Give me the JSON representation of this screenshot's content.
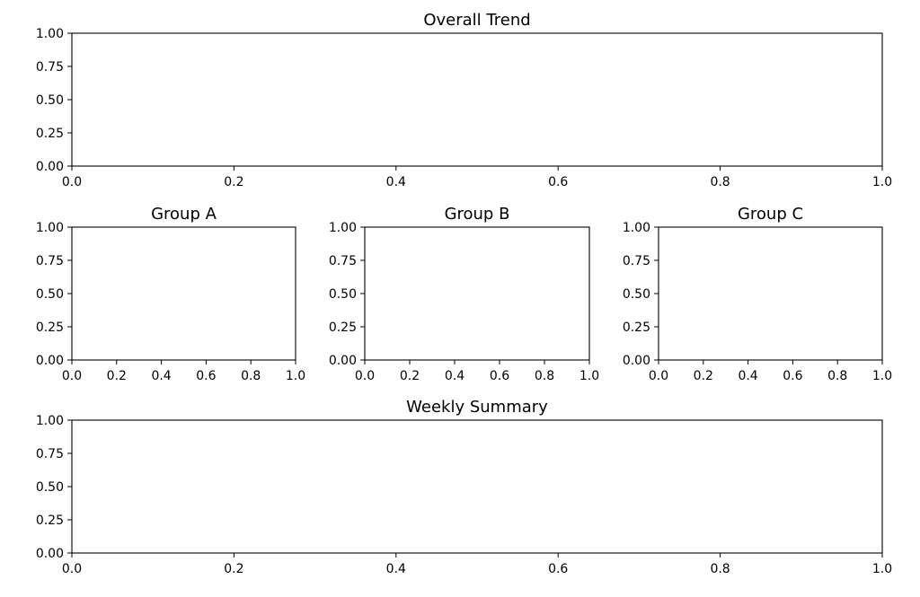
{
  "chart_data": [
    {
      "type": "line",
      "title": "Overall Trend",
      "xlabel": "",
      "ylabel": "",
      "xlim": [
        0,
        1
      ],
      "ylim": [
        0,
        1
      ],
      "xticks": [
        "0.0",
        "0.2",
        "0.4",
        "0.6",
        "0.8",
        "1.0"
      ],
      "yticks": [
        "0.00",
        "0.25",
        "0.50",
        "0.75",
        "1.00"
      ],
      "grid": false,
      "series": []
    },
    {
      "type": "line",
      "title": "Group A",
      "xlabel": "",
      "ylabel": "",
      "xlim": [
        0,
        1
      ],
      "ylim": [
        0,
        1
      ],
      "xticks": [
        "0.0",
        "0.2",
        "0.4",
        "0.6",
        "0.8",
        "1.0"
      ],
      "yticks": [
        "0.00",
        "0.25",
        "0.50",
        "0.75",
        "1.00"
      ],
      "grid": false,
      "series": []
    },
    {
      "type": "line",
      "title": "Group B",
      "xlabel": "",
      "ylabel": "",
      "xlim": [
        0,
        1
      ],
      "ylim": [
        0,
        1
      ],
      "xticks": [
        "0.0",
        "0.2",
        "0.4",
        "0.6",
        "0.8",
        "1.0"
      ],
      "yticks": [
        "0.00",
        "0.25",
        "0.50",
        "0.75",
        "1.00"
      ],
      "grid": false,
      "series": []
    },
    {
      "type": "line",
      "title": "Group C",
      "xlabel": "",
      "ylabel": "",
      "xlim": [
        0,
        1
      ],
      "ylim": [
        0,
        1
      ],
      "xticks": [
        "0.0",
        "0.2",
        "0.4",
        "0.6",
        "0.8",
        "1.0"
      ],
      "yticks": [
        "0.00",
        "0.25",
        "0.50",
        "0.75",
        "1.00"
      ],
      "grid": false,
      "series": []
    },
    {
      "type": "line",
      "title": "Weekly Summary",
      "xlabel": "",
      "ylabel": "",
      "xlim": [
        0,
        1
      ],
      "ylim": [
        0,
        1
      ],
      "xticks": [
        "0.0",
        "0.2",
        "0.4",
        "0.6",
        "0.8",
        "1.0"
      ],
      "yticks": [
        "0.00",
        "0.25",
        "0.50",
        "0.75",
        "1.00"
      ],
      "grid": false,
      "series": []
    }
  ]
}
